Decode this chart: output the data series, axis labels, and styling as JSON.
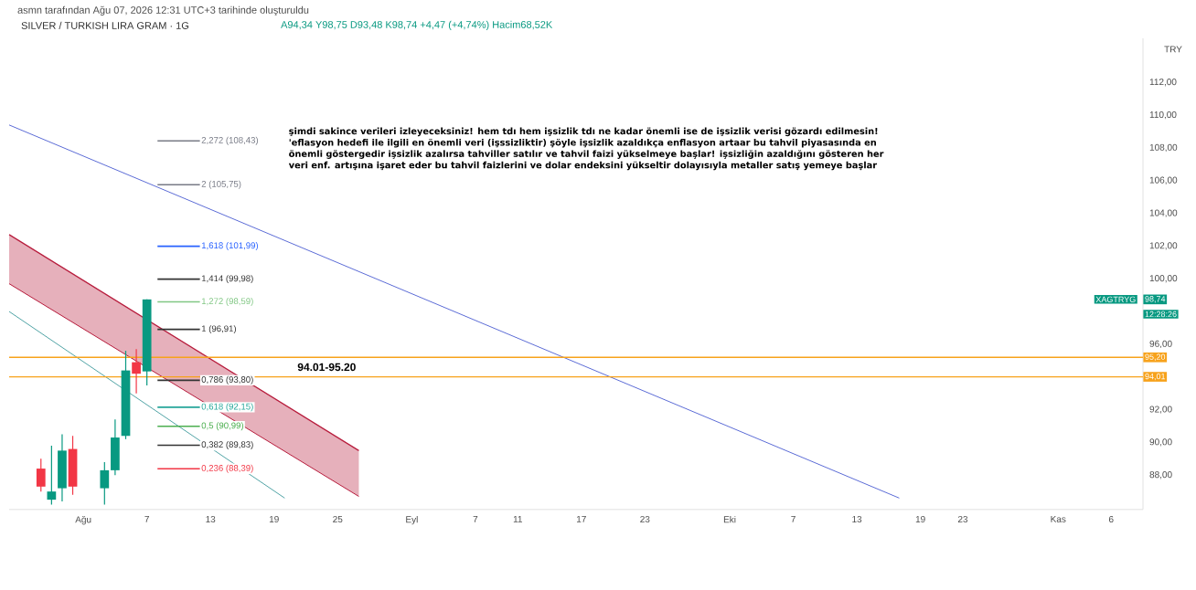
{
  "chart_data": {
    "type": "candlestick",
    "title": "SILVER / TURKISH LIRA GRAM · 1G",
    "subtitle": "A94,34 Y98,75 D93,48 K98,74 +4,47 (+4,74%) Hacim68,52K",
    "ylabel": "TRY",
    "x": [
      "2026-07-28",
      "2026-07-29",
      "2026-07-30",
      "2026-07-31",
      "2026-08-03",
      "2026-08-04",
      "2026-08-05",
      "2026-08-06",
      "2026-08-07"
    ],
    "ohlc": [
      [
        88.4,
        89.0,
        87.0,
        87.3
      ],
      [
        86.5,
        89.8,
        86.2,
        87.0
      ],
      [
        87.2,
        90.5,
        86.4,
        89.5
      ],
      [
        89.6,
        90.4,
        86.8,
        87.3
      ],
      [
        87.2,
        88.8,
        86.2,
        88.3
      ],
      [
        88.3,
        91.4,
        88.0,
        90.3
      ],
      [
        90.4,
        95.6,
        90.2,
        94.4
      ],
      [
        94.9,
        95.7,
        93.0,
        94.2
      ],
      [
        94.34,
        98.75,
        93.48,
        98.74
      ]
    ],
    "colors": [
      "#f23645",
      "#089981",
      "#089981",
      "#f23645",
      "#089981",
      "#089981",
      "#089981",
      "#f23645",
      "#089981"
    ],
    "series": [
      {
        "type": "line",
        "color": "#5b6bd6",
        "x": [
          "2026-07-25",
          "2026-10-17"
        ],
        "values": [
          109.4,
          86.6
        ]
      },
      {
        "type": "line",
        "color": "#4fa3a5",
        "x": [
          "2026-07-25",
          "2026-08-20"
        ],
        "values": [
          98.0,
          86.6
        ]
      },
      {
        "type": "area",
        "color": "#b71c3c",
        "x": [
          "2026-07-25",
          "2026-08-27"
        ],
        "values": [
          102.7,
          89.5
        ]
      },
      {
        "type": "line",
        "color": "#b71c3c",
        "x": [
          "2026-07-25",
          "2026-08-27"
        ],
        "values": [
          99.7,
          86.7
        ]
      }
    ],
    "xlim": [
      "2026-07-25",
      "2026-11-09"
    ],
    "ylim": [
      85.9,
      114.7
    ],
    "xticks": [
      {
        "value": "2026-08-01",
        "label": "Ağu"
      },
      {
        "value": "2026-08-07",
        "label": "7"
      },
      {
        "value": "2026-08-13",
        "label": "13"
      },
      {
        "value": "2026-08-19",
        "label": "19"
      },
      {
        "value": "2026-08-25",
        "label": "25"
      },
      {
        "value": "2026-09-01",
        "label": "Eyl"
      },
      {
        "value": "2026-09-07",
        "label": "7"
      },
      {
        "value": "2026-09-11",
        "label": "11"
      },
      {
        "value": "2026-09-17",
        "label": "17"
      },
      {
        "value": "2026-09-23",
        "label": "23"
      },
      {
        "value": "2026-10-01",
        "label": "Eki"
      },
      {
        "value": "2026-10-07",
        "label": "7"
      },
      {
        "value": "2026-10-13",
        "label": "13"
      },
      {
        "value": "2026-10-19",
        "label": "19"
      },
      {
        "value": "2026-10-23",
        "label": "23"
      },
      {
        "value": "2026-11-01",
        "label": "Kas"
      },
      {
        "value": "2026-11-06",
        "label": "6"
      }
    ],
    "yticks": [
      {
        "value": 88,
        "label": "88,00"
      },
      {
        "value": 90,
        "label": "90,00"
      },
      {
        "value": 92,
        "label": "92,00"
      },
      {
        "value": 96,
        "label": "96,00"
      },
      {
        "value": 100,
        "label": "100,00"
      },
      {
        "value": 102,
        "label": "102,00"
      },
      {
        "value": 104,
        "label": "104,00"
      },
      {
        "value": 106,
        "label": "106,00"
      },
      {
        "value": 108,
        "label": "108,00"
      },
      {
        "value": 110,
        "label": "110,00"
      },
      {
        "value": 112,
        "label": "112,00"
      }
    ],
    "ref_lines": [
      {
        "axis": "y",
        "value": 108.43,
        "label": "2,272 (108,43)",
        "color": "#787b86"
      },
      {
        "axis": "y",
        "value": 105.75,
        "label": "2 (105,75)",
        "color": "#787b86"
      },
      {
        "axis": "y",
        "value": 101.99,
        "label": "1,618 (101,99)",
        "color": "#2962ff"
      },
      {
        "axis": "y",
        "value": 99.98,
        "label": "1,414 (99,98)",
        "color": "#333333"
      },
      {
        "axis": "y",
        "value": 98.59,
        "label": "1,272 (98,59)",
        "color": "#81c784"
      },
      {
        "axis": "y",
        "value": 96.91,
        "label": "1 (96,91)",
        "color": "#333333"
      },
      {
        "axis": "y",
        "value": 93.8,
        "label": "0,786 (93,80)",
        "color": "#333333"
      },
      {
        "axis": "y",
        "value": 92.15,
        "label": "0,618 (92,15)",
        "color": "#26a69a"
      },
      {
        "axis": "y",
        "value": 90.99,
        "label": "0,5 (90,99)",
        "color": "#4caf50"
      },
      {
        "axis": "y",
        "value": 89.83,
        "label": "0,382 (89,83)",
        "color": "#333333"
      },
      {
        "axis": "y",
        "value": 88.39,
        "label": "0,236 (88,39)",
        "color": "#f23645"
      },
      {
        "axis": "y",
        "value": 95.2,
        "label": "95,20",
        "color": "#f7a21b"
      },
      {
        "axis": "y",
        "value": 94.01,
        "label": "94,01",
        "color": "#f7a21b"
      }
    ],
    "annotations": [
      "asmn tarafından Ağu 07, 2026 12:31 UTC+3 tarihinde oluşturuldu",
      "şimdi sakince verileri izleyeceksiniz! hem tdı hem işsizlik tdı ne kadar önemli ise de işsizlik verisi gözardı edilmesin!",
      "'eflasyon hedefi ile ilgili en önemli veri (işssizliktir) şöyle işsizlik azaldıkça enflasyon artaar bu tahvil piyasasında en",
      "önemli göstergedir işsizlik azalırsa tahviller satılır ve tahvil faizi yükselmeye başlar! işsizliğin azaldığını gösteren her",
      "veri enf. artışına işaret eder bu tahvil faizlerini ve dolar endeksini yükseltir dolayısıyla metaller satış yemeye başlar",
      "94.01-95.20",
      "XAGTRYG",
      "12:28:26",
      "98,74"
    ]
  }
}
